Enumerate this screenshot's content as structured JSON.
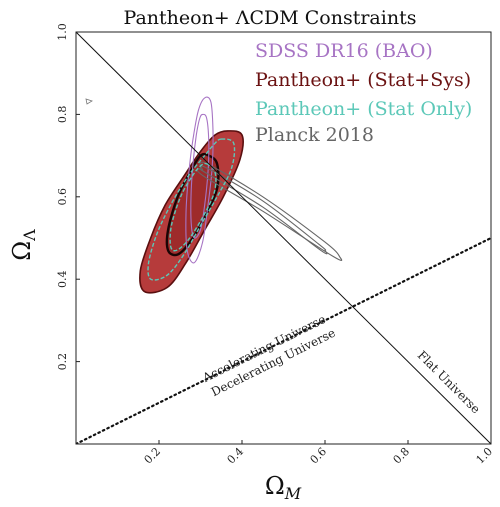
{
  "chart_data": {
    "type": "contour",
    "title": "Pantheon+ ΛCDM Constraints",
    "xlabel": "Ω",
    "xlabel_sub": "M",
    "ylabel": "Ω",
    "ylabel_sub": "Λ",
    "xlim": [
      0,
      1
    ],
    "ylim": [
      0,
      1
    ],
    "xticks": [
      "0.2",
      "0.4",
      "0.6",
      "0.8",
      "1.0"
    ],
    "yticks": [
      "0.2",
      "0.4",
      "0.6",
      "0.8",
      "1.0"
    ],
    "grid": false,
    "legend_position": "top-right",
    "legend": [
      {
        "label": "SDSS DR16 (BAO)",
        "color": "#a774c4"
      },
      {
        "label": "Pantheon+ (Stat+Sys)",
        "color": "#6b1212"
      },
      {
        "label": "Pantheon+ (Stat Only)",
        "color": "#5cc8b8"
      },
      {
        "label": "Planck 2018",
        "color": "#666666"
      }
    ],
    "reference_lines": [
      {
        "name": "Flat Universe",
        "label": "Flat Universe",
        "points": [
          [
            0,
            1
          ],
          [
            1,
            0
          ]
        ],
        "style": "solid"
      },
      {
        "name": "Acceleration boundary",
        "label_above": "Accelerating Universe",
        "label_below": "Decelerating Universe",
        "points": [
          [
            0,
            0
          ],
          [
            1,
            0.5
          ]
        ],
        "style": "dotted"
      }
    ],
    "series": [
      {
        "name": "SDSS DR16 (BAO)",
        "color": "#a774c4",
        "contours": [
          {
            "level": "1sigma",
            "points": [
              [
                0.305,
                0.8
              ],
              [
                0.315,
                0.79
              ],
              [
                0.32,
                0.73
              ],
              [
                0.318,
                0.66
              ],
              [
                0.31,
                0.58
              ],
              [
                0.3,
                0.52
              ],
              [
                0.285,
                0.5
              ],
              [
                0.278,
                0.53
              ],
              [
                0.277,
                0.6
              ],
              [
                0.282,
                0.68
              ],
              [
                0.29,
                0.75
              ],
              [
                0.298,
                0.79
              ]
            ]
          },
          {
            "level": "2sigma",
            "points": [
              [
                0.31,
                0.84
              ],
              [
                0.325,
                0.83
              ],
              [
                0.33,
                0.76
              ],
              [
                0.328,
                0.67
              ],
              [
                0.318,
                0.58
              ],
              [
                0.305,
                0.49
              ],
              [
                0.285,
                0.44
              ],
              [
                0.268,
                0.47
              ],
              [
                0.265,
                0.56
              ],
              [
                0.272,
                0.66
              ],
              [
                0.282,
                0.74
              ],
              [
                0.295,
                0.81
              ]
            ]
          }
        ]
      },
      {
        "name": "Pantheon+ (Stat+Sys)",
        "color": "#6b1212",
        "fill": "#b02a2a",
        "contours": [
          {
            "level": "1sigma",
            "points": [
              [
                0.32,
                0.7
              ],
              [
                0.34,
                0.68
              ],
              [
                0.34,
                0.62
              ],
              [
                0.31,
                0.55
              ],
              [
                0.275,
                0.49
              ],
              [
                0.245,
                0.46
              ],
              [
                0.222,
                0.47
              ],
              [
                0.222,
                0.52
              ],
              [
                0.245,
                0.6
              ],
              [
                0.275,
                0.66
              ],
              [
                0.3,
                0.7
              ]
            ]
          },
          {
            "level": "2sigma",
            "points": [
              [
                0.365,
                0.76
              ],
              [
                0.4,
                0.75
              ],
              [
                0.395,
                0.69
              ],
              [
                0.355,
                0.6
              ],
              [
                0.31,
                0.52
              ],
              [
                0.265,
                0.44
              ],
              [
                0.22,
                0.38
              ],
              [
                0.165,
                0.37
              ],
              [
                0.155,
                0.42
              ],
              [
                0.18,
                0.5
              ],
              [
                0.215,
                0.58
              ],
              [
                0.26,
                0.65
              ],
              [
                0.3,
                0.71
              ],
              [
                0.335,
                0.75
              ]
            ]
          }
        ]
      },
      {
        "name": "Pantheon+ (Stat Only)",
        "color": "#5cc8b8",
        "contours": [
          {
            "level": "1sigma",
            "points": [
              [
                0.315,
                0.68
              ],
              [
                0.335,
                0.66
              ],
              [
                0.333,
                0.61
              ],
              [
                0.305,
                0.55
              ],
              [
                0.27,
                0.495
              ],
              [
                0.242,
                0.47
              ],
              [
                0.228,
                0.48
              ],
              [
                0.23,
                0.53
              ],
              [
                0.252,
                0.6
              ],
              [
                0.28,
                0.65
              ],
              [
                0.3,
                0.675
              ]
            ]
          },
          {
            "level": "2sigma",
            "points": [
              [
                0.35,
                0.74
              ],
              [
                0.38,
                0.73
              ],
              [
                0.375,
                0.67
              ],
              [
                0.34,
                0.6
              ],
              [
                0.3,
                0.53
              ],
              [
                0.26,
                0.46
              ],
              [
                0.22,
                0.41
              ],
              [
                0.18,
                0.4
              ],
              [
                0.175,
                0.44
              ],
              [
                0.195,
                0.51
              ],
              [
                0.228,
                0.58
              ],
              [
                0.27,
                0.65
              ],
              [
                0.31,
                0.7
              ],
              [
                0.335,
                0.73
              ]
            ]
          }
        ]
      },
      {
        "name": "Planck 2018",
        "color": "#666666",
        "contours": [
          {
            "level": "1sigma",
            "points": [
              [
                0.305,
                0.665
              ],
              [
                0.315,
                0.67
              ],
              [
                0.45,
                0.59
              ],
              [
                0.585,
                0.485
              ],
              [
                0.6,
                0.47
              ],
              [
                0.59,
                0.47
              ],
              [
                0.45,
                0.575
              ],
              [
                0.31,
                0.66
              ]
            ]
          },
          {
            "level": "2sigma",
            "points": [
              [
                0.3,
                0.67
              ],
              [
                0.315,
                0.68
              ],
              [
                0.45,
                0.6
              ],
              [
                0.6,
                0.49
              ],
              [
                0.635,
                0.455
              ],
              [
                0.62,
                0.455
              ],
              [
                0.45,
                0.565
              ],
              [
                0.305,
                0.652
              ]
            ]
          }
        ]
      }
    ]
  }
}
